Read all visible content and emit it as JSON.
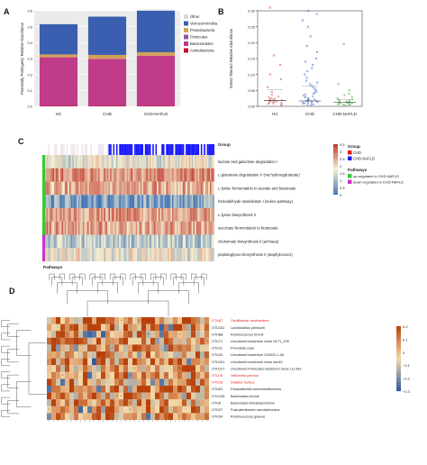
{
  "panels": {
    "a": "A",
    "b": "B",
    "c": "C",
    "d": "D"
  },
  "chart_data": [
    {
      "panel": "A",
      "type": "bar",
      "stacked": true,
      "ylabel": "Potentially Pathogenic Relative Abundance",
      "ylim": [
        0,
        0.6
      ],
      "yticks": [
        "0.0",
        "0.1",
        "0.2",
        "0.3",
        "0.4",
        "0.5",
        "0.6"
      ],
      "categories": [
        "HC",
        "CHD",
        "CHD-NAFLD"
      ],
      "legend_position": "right",
      "series": [
        {
          "name": "Actinobacteria",
          "color": "#c8102e",
          "values": [
            0.003,
            0.003,
            0.003
          ]
        },
        {
          "name": "Bacteroidetes",
          "color": "#c03b8a",
          "values": [
            0.305,
            0.295,
            0.315
          ]
        },
        {
          "name": "Firmicutes",
          "color": "#8e5a9e",
          "values": [
            0.0,
            0.0,
            0.0
          ]
        },
        {
          "name": "Proteobacteria",
          "color": "#d4a15a",
          "values": [
            0.018,
            0.025,
            0.022
          ]
        },
        {
          "name": "Verrucomicrobia",
          "color": "#3a5fb0",
          "values": [
            0.19,
            0.24,
            0.26
          ]
        },
        {
          "name": "Other",
          "color": "#d9d9d9",
          "values": [
            0.004,
            0.004,
            0.007
          ]
        }
      ]
    },
    {
      "panel": "B",
      "type": "scatter",
      "ylabel": "Stress Tolerant Relative Abundance",
      "ylim": [
        0,
        0.3
      ],
      "yticks": [
        "0.00",
        "0.05",
        "0.10",
        "0.15",
        "0.20",
        "0.25",
        "0.30"
      ],
      "categories": [
        "HC",
        "CHD",
        "CHD-NAFLD"
      ],
      "colors": [
        "#e06b6b",
        "#6b8fd6",
        "#5cb85c"
      ],
      "medians": [
        0.018,
        0.017,
        0.012
      ],
      "means": [
        0.052,
        0.063,
        0.022
      ],
      "points": [
        [
          0.004,
          0.006,
          0.008,
          0.009,
          0.011,
          0.012,
          0.013,
          0.014,
          0.016,
          0.017,
          0.018,
          0.019,
          0.021,
          0.022,
          0.024,
          0.026,
          0.028,
          0.031,
          0.036,
          0.045,
          0.06,
          0.085,
          0.1,
          0.13,
          0.16,
          0.31
        ],
        [
          0.003,
          0.005,
          0.006,
          0.008,
          0.009,
          0.01,
          0.011,
          0.012,
          0.013,
          0.014,
          0.015,
          0.016,
          0.017,
          0.018,
          0.019,
          0.02,
          0.021,
          0.022,
          0.024,
          0.026,
          0.028,
          0.03,
          0.032,
          0.035,
          0.038,
          0.04,
          0.043,
          0.046,
          0.05,
          0.055,
          0.06,
          0.065,
          0.07,
          0.075,
          0.08,
          0.09,
          0.1,
          0.11,
          0.12,
          0.13,
          0.14,
          0.15,
          0.17,
          0.19,
          0.22,
          0.25,
          0.27,
          0.29,
          0.3
        ],
        [
          0.002,
          0.004,
          0.005,
          0.006,
          0.007,
          0.008,
          0.009,
          0.01,
          0.011,
          0.012,
          0.013,
          0.014,
          0.015,
          0.016,
          0.018,
          0.02,
          0.022,
          0.025,
          0.03,
          0.035,
          0.04,
          0.05,
          0.07,
          0.195
        ]
      ]
    },
    {
      "panel": "C",
      "type": "heatmap",
      "rows": [
        "lactose and galactose degradation I",
        "L-glutamate degradation V (via hydroxyglutarate)",
        "L-lysine fermentation to acetate and butanoate",
        "formaldehyde assimilation I (serine pathway)",
        "L-lysine biosynthesis II",
        "succinate fermentation to butanoate",
        "chorismate biosynthesis II (archaea)",
        "peptidoglycan biosynthesis II (staphylococci)"
      ],
      "row_pathway_class": [
        "up",
        "up",
        "up",
        "up",
        "up",
        "up",
        "down",
        "down"
      ],
      "top_annotation_label": "Group",
      "left_annotation_label": "Pathways",
      "scale_ticks": [
        "3.5",
        "3",
        "2.5",
        "2",
        "1.5",
        "1",
        "0.5",
        "0"
      ],
      "scale_colors": [
        "#c0392b",
        "#f5f0d0",
        "#4575b4"
      ],
      "row_mean_levels": [
        1.6,
        2.7,
        2.4,
        0.6,
        2.6,
        2.5,
        1.1,
        1.7
      ],
      "legend": {
        "group_title": "Group",
        "groups": [
          {
            "label": "CHD",
            "color": "#e41a1c"
          },
          {
            "label": "CHD-NAFLD",
            "color": "#1a1aff"
          }
        ],
        "pathways_title": "Pathways",
        "pathway_classes": [
          {
            "label": "up-regulated in CHD-NAFLD",
            "color": "#33cc33"
          },
          {
            "label": "down-regulated in CHD-NAFLD",
            "color": "#cc33cc"
          }
        ]
      }
    },
    {
      "panel": "D",
      "type": "heatmap",
      "rows": [
        {
          "id": "OTU87",
          "taxon": "Oscillibacter ruminantium",
          "highlight": true
        },
        {
          "id": "OTU102",
          "taxon": "Lactobacillus johnsonii",
          "highlight": false
        },
        {
          "id": "OTU88",
          "taxon": "Ruminococcus bromii",
          "highlight": false
        },
        {
          "id": "OTU71",
          "taxon": "Uncultured bacterium clone HLT1_205",
          "highlight": false
        },
        {
          "id": "OTU11",
          "taxon": "Prevotella copri",
          "highlight": false
        },
        {
          "id": "OTU20",
          "taxon": "Uncultured bacterium 219002-1-48",
          "highlight": false
        },
        {
          "id": "OTU101",
          "taxon": "Uncultured bacterium clone sun40",
          "highlight": false
        },
        {
          "id": "OTU127",
          "taxon": "Uncultured Firmicutes bacterium clone LG-343",
          "highlight": false
        },
        {
          "id": "OTU76",
          "taxon": "Veillonella parvula",
          "highlight": true
        },
        {
          "id": "OTU18",
          "taxon": "Dialister invisus",
          "highlight": true
        },
        {
          "id": "OTU81",
          "taxon": "Parasutterella excrementihominis",
          "highlight": false
        },
        {
          "id": "OTU135",
          "taxon": "Bacteroides bromii",
          "highlight": false
        },
        {
          "id": "OTU6",
          "taxon": "Bacteroides thetaiotaomicron",
          "highlight": false
        },
        {
          "id": "OTU27",
          "taxon": "Fusicatenibacter saccharivorans",
          "highlight": false
        },
        {
          "id": "OTU34",
          "taxon": "Ruminococcus gnavus",
          "highlight": false
        }
      ],
      "column_count": 36,
      "scale_ticks": [
        "0.2",
        "0.1",
        "0",
        "−0.1",
        "−0.2",
        "−0.3"
      ],
      "scale_colors": [
        "#b8410b",
        "#f5d9a8",
        "#2c5aa0"
      ],
      "vlim": [
        -0.3,
        0.25
      ]
    }
  ]
}
